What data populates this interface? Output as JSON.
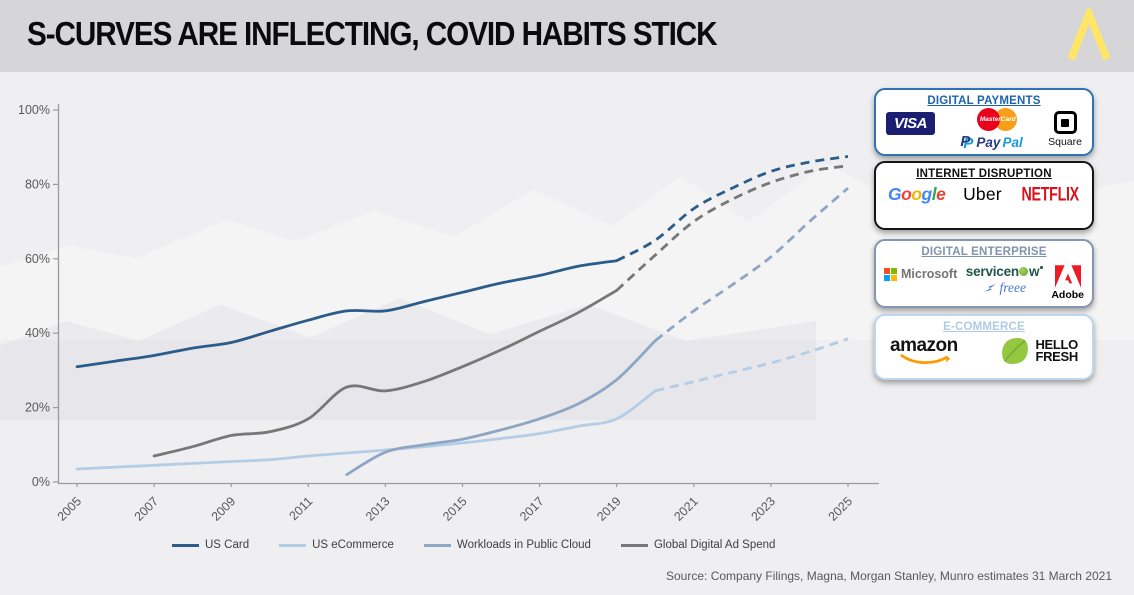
{
  "header": {
    "title": "S-CURVES ARE INFLECTING, COVID HABITS STICK",
    "logo": "munro-caret",
    "logo_color": "#FFE666"
  },
  "chart_data": {
    "type": "line",
    "x_tick_years": [
      2005,
      2007,
      2009,
      2011,
      2013,
      2015,
      2017,
      2019,
      2021,
      2023,
      2025
    ],
    "y_tick_values": [
      0,
      20,
      40,
      60,
      80,
      100
    ],
    "y_tick_labels": [
      "0%",
      "20%",
      "40%",
      "60%",
      "80%",
      "100%"
    ],
    "ylim": [
      0,
      100
    ],
    "xlim": [
      2004.5,
      2025.5
    ],
    "grid": false,
    "legend_position": "bottom",
    "forecast_style": "dashed",
    "series": [
      {
        "id": "us-card",
        "name": "US Card",
        "color": "#2B5C8A",
        "forecast_from": 2019,
        "years": [
          2005,
          2006,
          2007,
          2008,
          2009,
          2010,
          2011,
          2012,
          2013,
          2014,
          2015,
          2016,
          2017,
          2018,
          2019,
          2020,
          2021,
          2022,
          2023,
          2024,
          2025
        ],
        "values": [
          31,
          32.5,
          34,
          36,
          37.5,
          40.5,
          43.5,
          46,
          46,
          48.5,
          51,
          53.5,
          55.5,
          58,
          59.5,
          65,
          73.5,
          79,
          83.5,
          86,
          87.5
        ]
      },
      {
        "id": "us-ecommerce",
        "name": "US eCommerce",
        "color": "#B4CDE6",
        "forecast_from": 2020,
        "years": [
          2005,
          2006,
          2007,
          2008,
          2009,
          2010,
          2011,
          2012,
          2013,
          2014,
          2015,
          2016,
          2017,
          2018,
          2019,
          2020,
          2021,
          2022,
          2023,
          2024,
          2025
        ],
        "values": [
          3.5,
          4,
          4.5,
          5,
          5.5,
          6,
          7,
          7.8,
          8.6,
          9.5,
          10.5,
          11.7,
          13,
          15,
          17,
          24.5,
          27,
          29.5,
          32,
          35,
          38.5
        ]
      },
      {
        "id": "workloads-public-cloud",
        "name": "Workloads in Public Cloud",
        "color": "#8EA6C4",
        "forecast_from": 2020,
        "years": [
          2012,
          2013,
          2014,
          2015,
          2016,
          2017,
          2018,
          2019,
          2020,
          2021,
          2022,
          2023,
          2024,
          2025
        ],
        "values": [
          2,
          8,
          10,
          11.5,
          14,
          17,
          21,
          27.5,
          38,
          46,
          53,
          60.5,
          70,
          79
        ]
      },
      {
        "id": "global-digital-ad-spend",
        "name": "Global Digital Ad Spend",
        "color": "#777777",
        "forecast_from": 2019,
        "years": [
          2007,
          2008,
          2009,
          2010,
          2011,
          2012,
          2013,
          2014,
          2015,
          2016,
          2017,
          2018,
          2019,
          2020,
          2021,
          2022,
          2023,
          2024,
          2025
        ],
        "values": [
          7,
          9.5,
          12.5,
          13.5,
          17,
          25.5,
          24.5,
          27,
          31,
          35.5,
          40.5,
          45.5,
          51.5,
          61,
          70,
          76,
          80.5,
          83.5,
          85
        ]
      }
    ]
  },
  "panels": {
    "payments": {
      "title": "DIGITAL PAYMENTS",
      "accent": "#2E74B5",
      "visa": "VISA",
      "paypal_p": "P",
      "paypal_pay": "Pay",
      "paypal_pal": "Pal",
      "mastercard": "MasterCard",
      "square": "Square"
    },
    "internet": {
      "title": "INTERNET DISRUPTION",
      "accent": "#151515",
      "google": {
        "g1": "G",
        "o1": "o",
        "o2": "o",
        "g2": "g",
        "l1": "l",
        "e1": "e"
      },
      "uber": "Uber",
      "netflix": "NETFLIX"
    },
    "enterprise": {
      "title": "DIGITAL ENTERPRISE",
      "accent": "#8496B0",
      "microsoft": "Microsoft",
      "servicenow_a": "servicen",
      "servicenow_b": "w",
      "freee": "freee",
      "adobe": "Adobe"
    },
    "ecommerce": {
      "title": "E-COMMERCE",
      "accent": "#BDD7EE",
      "amazon": "amazon",
      "hellofresh_1": "HELLO",
      "hellofresh_2": "FRESH"
    }
  },
  "footer": {
    "source": "Source: Company Filings, Magna, Morgan Stanley, Munro estimates 31 March 2021"
  }
}
